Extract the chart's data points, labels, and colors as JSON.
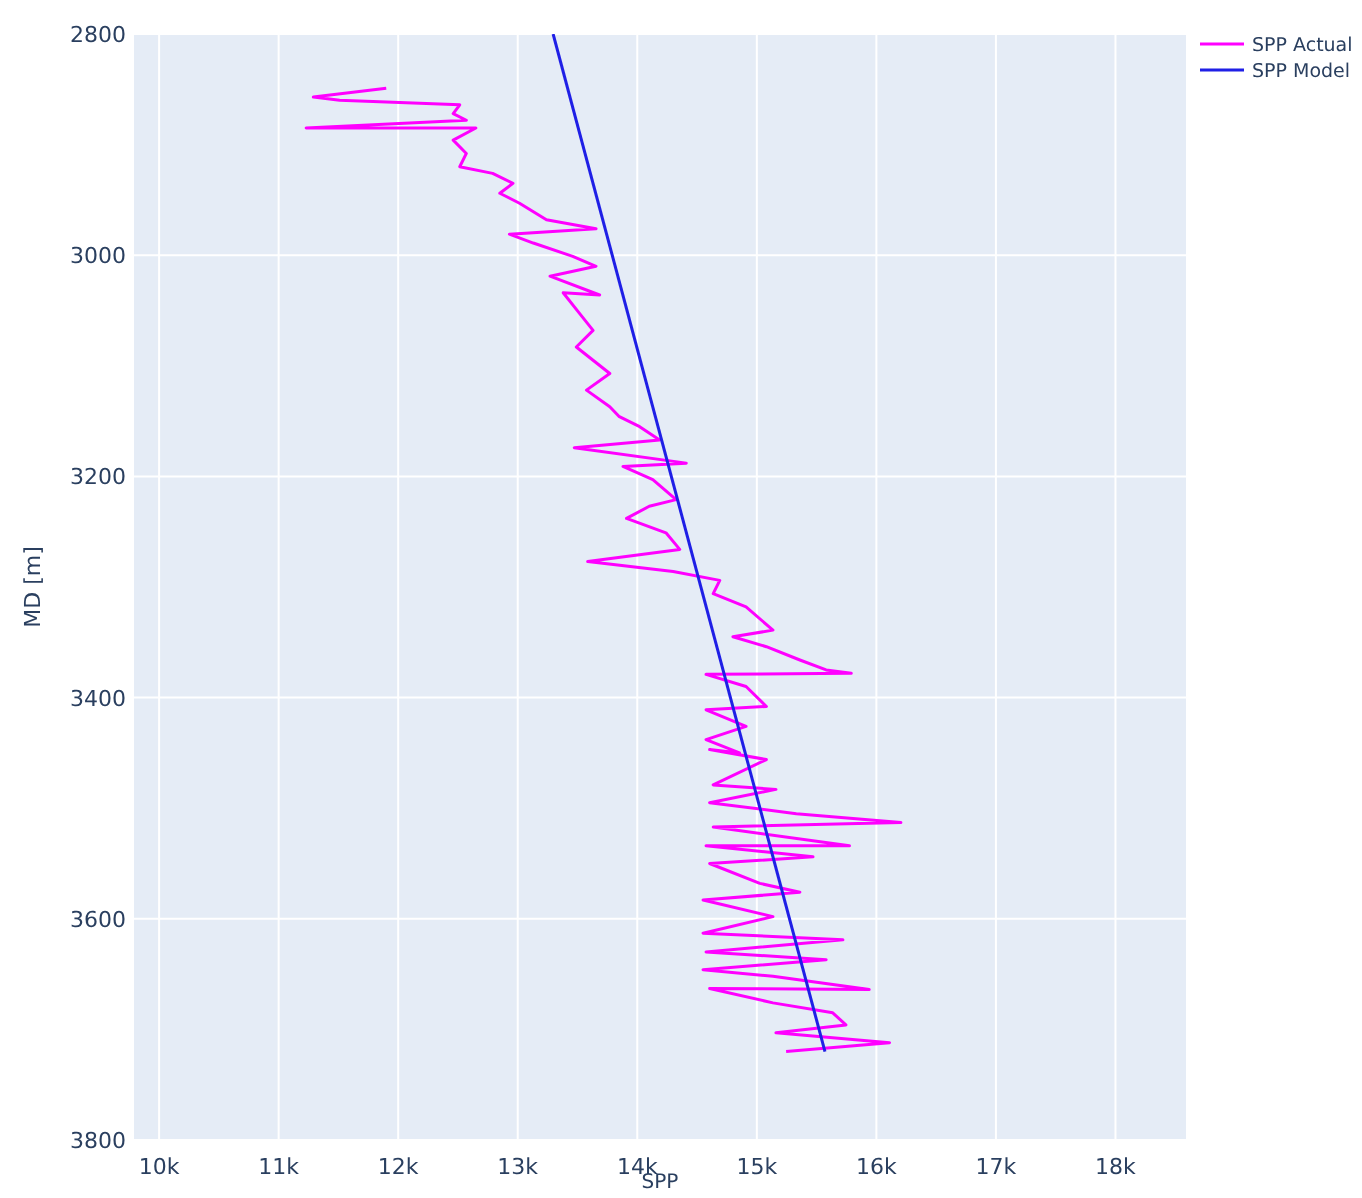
{
  "chart_data": {
    "type": "line",
    "xlabel": "SPP",
    "ylabel": "MD [m]",
    "xlim": [
      9790,
      18590
    ],
    "ylim": [
      3800,
      2800
    ],
    "xticks": [
      {
        "value": 10000,
        "label": "10k"
      },
      {
        "value": 11000,
        "label": "11k"
      },
      {
        "value": 12000,
        "label": "12k"
      },
      {
        "value": 13000,
        "label": "13k"
      },
      {
        "value": 14000,
        "label": "14k"
      },
      {
        "value": 15000,
        "label": "15k"
      },
      {
        "value": 16000,
        "label": "16k"
      },
      {
        "value": 17000,
        "label": "17k"
      },
      {
        "value": 18000,
        "label": "18k"
      }
    ],
    "yticks": [
      2800,
      3000,
      3200,
      3400,
      3600,
      3800
    ],
    "grid": true,
    "legend": "top right",
    "line_style": "solid",
    "marker": "none",
    "series": [
      {
        "name": "SPP Actual",
        "color": "#ff00ff",
        "x": [
          11900,
          11290,
          11510,
          12515,
          12460,
          12570,
          11230,
          12650,
          12460,
          12570,
          12515,
          12790,
          12960,
          12850,
          13015,
          13240,
          13655,
          12930,
          13130,
          13460,
          13655,
          13270,
          13685,
          13380,
          13520,
          13630,
          13490,
          13770,
          13575,
          13770,
          13850,
          14020,
          14187,
          13473,
          14410,
          13880,
          14130,
          14325,
          14100,
          13910,
          14240,
          14355,
          13585,
          14300,
          14690,
          14635,
          14910,
          15135,
          14800,
          15080,
          15360,
          15580,
          15790,
          14575,
          14910,
          15080,
          14575,
          14910,
          14575,
          14855,
          14605,
          15080,
          14635,
          15160,
          14605,
          15330,
          16205,
          14635,
          15775,
          14575,
          15470,
          14605,
          15025,
          15360,
          14550,
          15135,
          14550,
          15720,
          14575,
          15580,
          14550,
          15135,
          15940,
          14605,
          15135,
          15635,
          15745,
          15160,
          16110,
          15245
        ],
        "values": [
          2849,
          2857,
          2860,
          2864,
          2872,
          2878,
          2885,
          2885,
          2896,
          2908,
          2920,
          2926,
          2935,
          2944,
          2953,
          2968,
          2976,
          2981,
          2989,
          3001,
          3010,
          3019,
          3036,
          3034,
          3053,
          3068,
          3083,
          3107,
          3122,
          3137,
          3146,
          3155,
          3167,
          3174,
          3188,
          3191,
          3203,
          3221,
          3227,
          3238,
          3251,
          3266,
          3277,
          3286,
          3294,
          3306,
          3318,
          3339,
          3345,
          3354,
          3366,
          3375,
          3378,
          3379,
          3390,
          3408,
          3411,
          3426,
          3438,
          3450,
          3447,
          3456,
          3479,
          3483,
          3495,
          3505,
          3513,
          3517,
          3534,
          3534,
          3544,
          3550,
          3568,
          3576,
          3583,
          3598,
          3613,
          3619,
          3630,
          3637,
          3646,
          3652,
          3664,
          3663,
          3676,
          3685,
          3696,
          3703,
          3712,
          3720
        ]
      },
      {
        "name": "SPP Model",
        "color": "#1f1fe6",
        "x": [
          13296,
          15570
        ],
        "values": [
          2800,
          3720
        ]
      }
    ]
  }
}
